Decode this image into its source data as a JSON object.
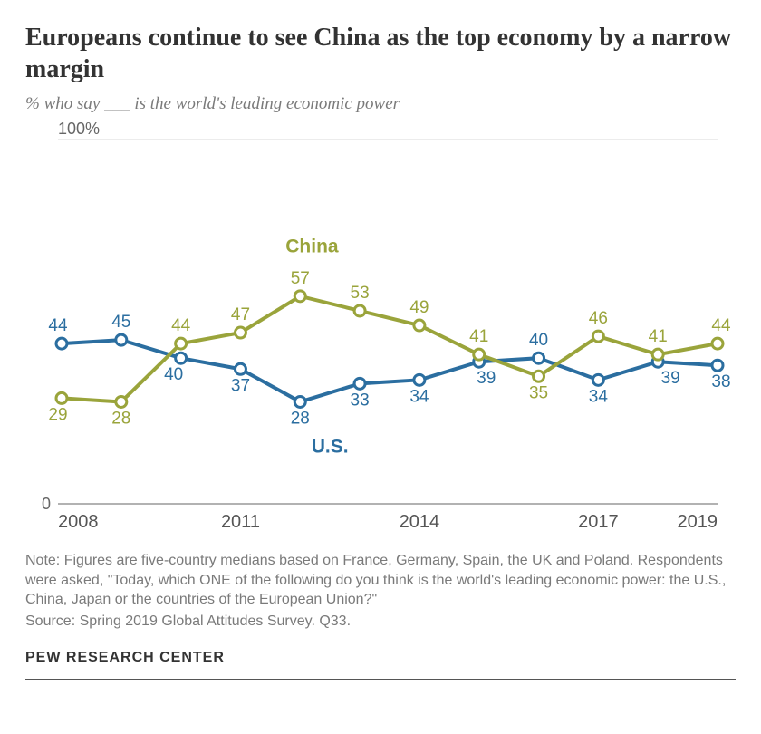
{
  "title": "Europeans continue to see China as the top economy by a narrow margin",
  "subtitle": "% who say ___ is the world's leading economic power",
  "chart": {
    "type": "line",
    "background_color": "#ffffff",
    "ylim": [
      0,
      100
    ],
    "y_axis_top_label": "100%",
    "y_axis_bottom_label": "0",
    "x_years": [
      2008,
      2009,
      2010,
      2011,
      2012,
      2013,
      2014,
      2015,
      2016,
      2017,
      2018,
      2019
    ],
    "x_tick_labels": [
      "2008",
      "2011",
      "2014",
      "2017",
      "2019"
    ],
    "x_tick_years": [
      2008,
      2011,
      2014,
      2017,
      2019
    ],
    "grid_color": "#d9d9d9",
    "baseline_color": "#999999",
    "line_width": 4,
    "marker_radius": 6,
    "marker_fill": "#ffffff",
    "label_fontsize": 19,
    "series_name_fontsize": 21,
    "axis_label_fontsize": 18,
    "x_label_fontsize": 20,
    "series": {
      "china": {
        "name": "China",
        "color": "#9aa43b",
        "values": [
          29,
          28,
          44,
          47,
          57,
          53,
          49,
          41,
          35,
          46,
          41,
          44
        ],
        "label_offsets": [
          [
            -4,
            24
          ],
          [
            0,
            24
          ],
          [
            0,
            -14
          ],
          [
            0,
            -14
          ],
          [
            0,
            -14
          ],
          [
            0,
            -14
          ],
          [
            0,
            -14
          ],
          [
            0,
            -14
          ],
          [
            0,
            24
          ],
          [
            0,
            -14
          ],
          [
            0,
            -14
          ],
          [
            4,
            -14
          ]
        ],
        "name_pos_year": 2012.2,
        "name_pos_value": 69
      },
      "us": {
        "name": "U.S.",
        "color": "#2b6ea0",
        "values": [
          44,
          45,
          40,
          37,
          28,
          33,
          34,
          39,
          40,
          34,
          39,
          38
        ],
        "label_offsets": [
          [
            -4,
            -14
          ],
          [
            0,
            -14
          ],
          [
            -8,
            24
          ],
          [
            0,
            24
          ],
          [
            0,
            24
          ],
          [
            0,
            24
          ],
          [
            0,
            24
          ],
          [
            8,
            24
          ],
          [
            0,
            -14
          ],
          [
            0,
            24
          ],
          [
            14,
            24
          ],
          [
            4,
            24
          ]
        ],
        "name_pos_year": 2012.5,
        "name_pos_value": 14
      }
    }
  },
  "note": "Note: Figures are five-country medians based on France, Germany, Spain, the UK and Poland. Respondents were asked, \"Today, which ONE of the following do you think is the world's leading economic power: the U.S., China, Japan or the countries of the European Union?\"",
  "source": "Source: Spring 2019 Global Attitudes Survey. Q33.",
  "brand": "PEW RESEARCH CENTER"
}
